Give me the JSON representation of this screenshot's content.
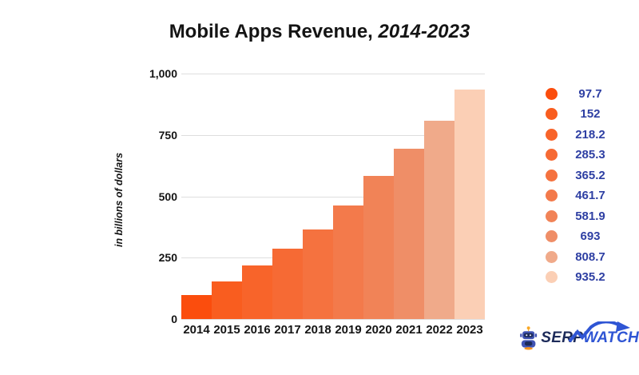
{
  "title": {
    "text_regular": "Mobile Apps Revenue, ",
    "text_italic": "2014-2023"
  },
  "y_axis": {
    "title": "in billions of dollars",
    "ticks": [
      {
        "label": "1,000",
        "value": 1000
      },
      {
        "label": "750",
        "value": 750
      },
      {
        "label": "500",
        "value": 500
      },
      {
        "label": "250",
        "value": 250
      },
      {
        "label": "0",
        "value": 0
      }
    ]
  },
  "chart_data": {
    "type": "bar",
    "title": "Mobile Apps Revenue, 2014-2023",
    "ylabel": "in billions of dollars",
    "categories": [
      "2014",
      "2015",
      "2016",
      "2017",
      "2018",
      "2019",
      "2020",
      "2021",
      "2022",
      "2023"
    ],
    "values": [
      97.7,
      152,
      218.2,
      285.3,
      365.2,
      461.7,
      581.9,
      693,
      808.7,
      935.2
    ],
    "value_labels": [
      "97.7",
      "152",
      "218.2",
      "285.3",
      "365.2",
      "461.7",
      "581.9",
      "693",
      "808.7",
      "935.2"
    ],
    "bar_colors": [
      "#fb4d0d",
      "#f95d1f",
      "#f8642a",
      "#f66a34",
      "#f5723f",
      "#f37a4b",
      "#f18357",
      "#ef8e67",
      "#f0aa8a",
      "#fbcfb5"
    ],
    "ylim": [
      0,
      1000
    ],
    "grid": true,
    "legend_position": "right"
  },
  "legend": {
    "text_color": "#2e3fa3"
  },
  "colors": {
    "grid": "#dedede",
    "axis_text": "#141414",
    "background": "#ffffff"
  },
  "logo": {
    "brand_serp": "SERP",
    "brand_watch": "WATCH",
    "serp_color": "#1d2b5a",
    "watch_color": "#2f55d4",
    "robot_icon": "robot-mascot-icon",
    "robot_blue": "#4154b3",
    "robot_navy": "#1d2b5a",
    "robot_yellow": "#f9a825",
    "robot_orange": "#f7941d"
  }
}
